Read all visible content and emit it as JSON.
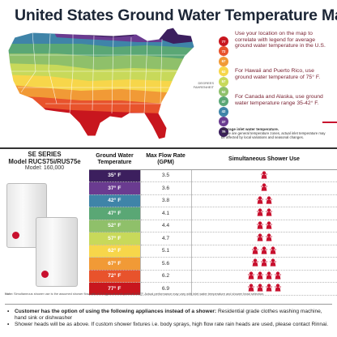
{
  "title": "United States Ground Water Temperature Map",
  "scale": {
    "label": "DEGREES FAHRENHEIT",
    "steps": [
      {
        "value": "77",
        "color": "#c8161e"
      },
      {
        "value": "72",
        "color": "#e8532c"
      },
      {
        "value": "67",
        "color": "#f19a36"
      },
      {
        "value": "62",
        "color": "#f7d64a"
      },
      {
        "value": "57",
        "color": "#c8d95a"
      },
      {
        "value": "52",
        "color": "#8fc06a"
      },
      {
        "value": "47",
        "color": "#5aa775"
      },
      {
        "value": "42",
        "color": "#3f84a8"
      },
      {
        "value": "37",
        "color": "#6a3b90"
      },
      {
        "value": "35",
        "color": "#3c1f5e"
      }
    ]
  },
  "notes": [
    "Use your location on the map to correlate with legend for average ground water temperature in the U.S.",
    "For Hawaii and Puerto Rico, use ground water temperature of 75° F.",
    "For Canada and Alaska, use ground water temperature range 35-42° F."
  ],
  "avg_note": {
    "heading": "Average inlet water temperature.",
    "text": "These are general temperature zones, actual inlet temperature may be affected by local variations and seasonal changes."
  },
  "product": {
    "series": "SE SERIES",
    "model": "Model RUCS75i/RUS75e",
    "alt_model": "Model: 160,000"
  },
  "table": {
    "headers": [
      "Ground Water Temperature",
      "Max Flow Rate (GPM)",
      "Simultaneous Shower Use"
    ],
    "rows": [
      {
        "temp": "35° F",
        "flow": "3.5",
        "showers": 1,
        "color": "#3c1f5e"
      },
      {
        "temp": "37° F",
        "flow": "3.6",
        "showers": 1,
        "color": "#6a3b90"
      },
      {
        "temp": "42° F",
        "flow": "3.8",
        "showers": 2,
        "color": "#3f84a8"
      },
      {
        "temp": "47° F",
        "flow": "4.1",
        "showers": 2,
        "color": "#5aa775"
      },
      {
        "temp": "52° F",
        "flow": "4.4",
        "showers": 2,
        "color": "#8fc06a"
      },
      {
        "temp": "57° F",
        "flow": "4.7",
        "showers": 2,
        "color": "#c8d95a"
      },
      {
        "temp": "62° F",
        "flow": "5.1",
        "showers": 3,
        "color": "#f7d64a"
      },
      {
        "temp": "67° F",
        "flow": "5.6",
        "showers": 3,
        "color": "#f19a36"
      },
      {
        "temp": "72° F",
        "flow": "6.2",
        "showers": 4,
        "color": "#e8532c"
      },
      {
        "temp": "77° F",
        "flow": "6.9",
        "showers": 4,
        "color": "#c8161e"
      }
    ]
  },
  "fine_print": {
    "label": "Note:",
    "text": "Simultaneous shower use is the assumed shower flow rate of 2.0 gpm at a set point of 120°F. Actual performance may vary with inlet water temperature and shower head selection."
  },
  "bullets": [
    {
      "bold": "Customer has the option of using the following appliances instead of a shower:",
      "text": " Residential grade clothes washing machine, hand sink or dishwasher"
    },
    {
      "bold": "",
      "text": "Shower heads will be as above. If custom shower fixtures i.e. body sprays, high flow rate rain heads are used, please contact Rinnai."
    }
  ]
}
